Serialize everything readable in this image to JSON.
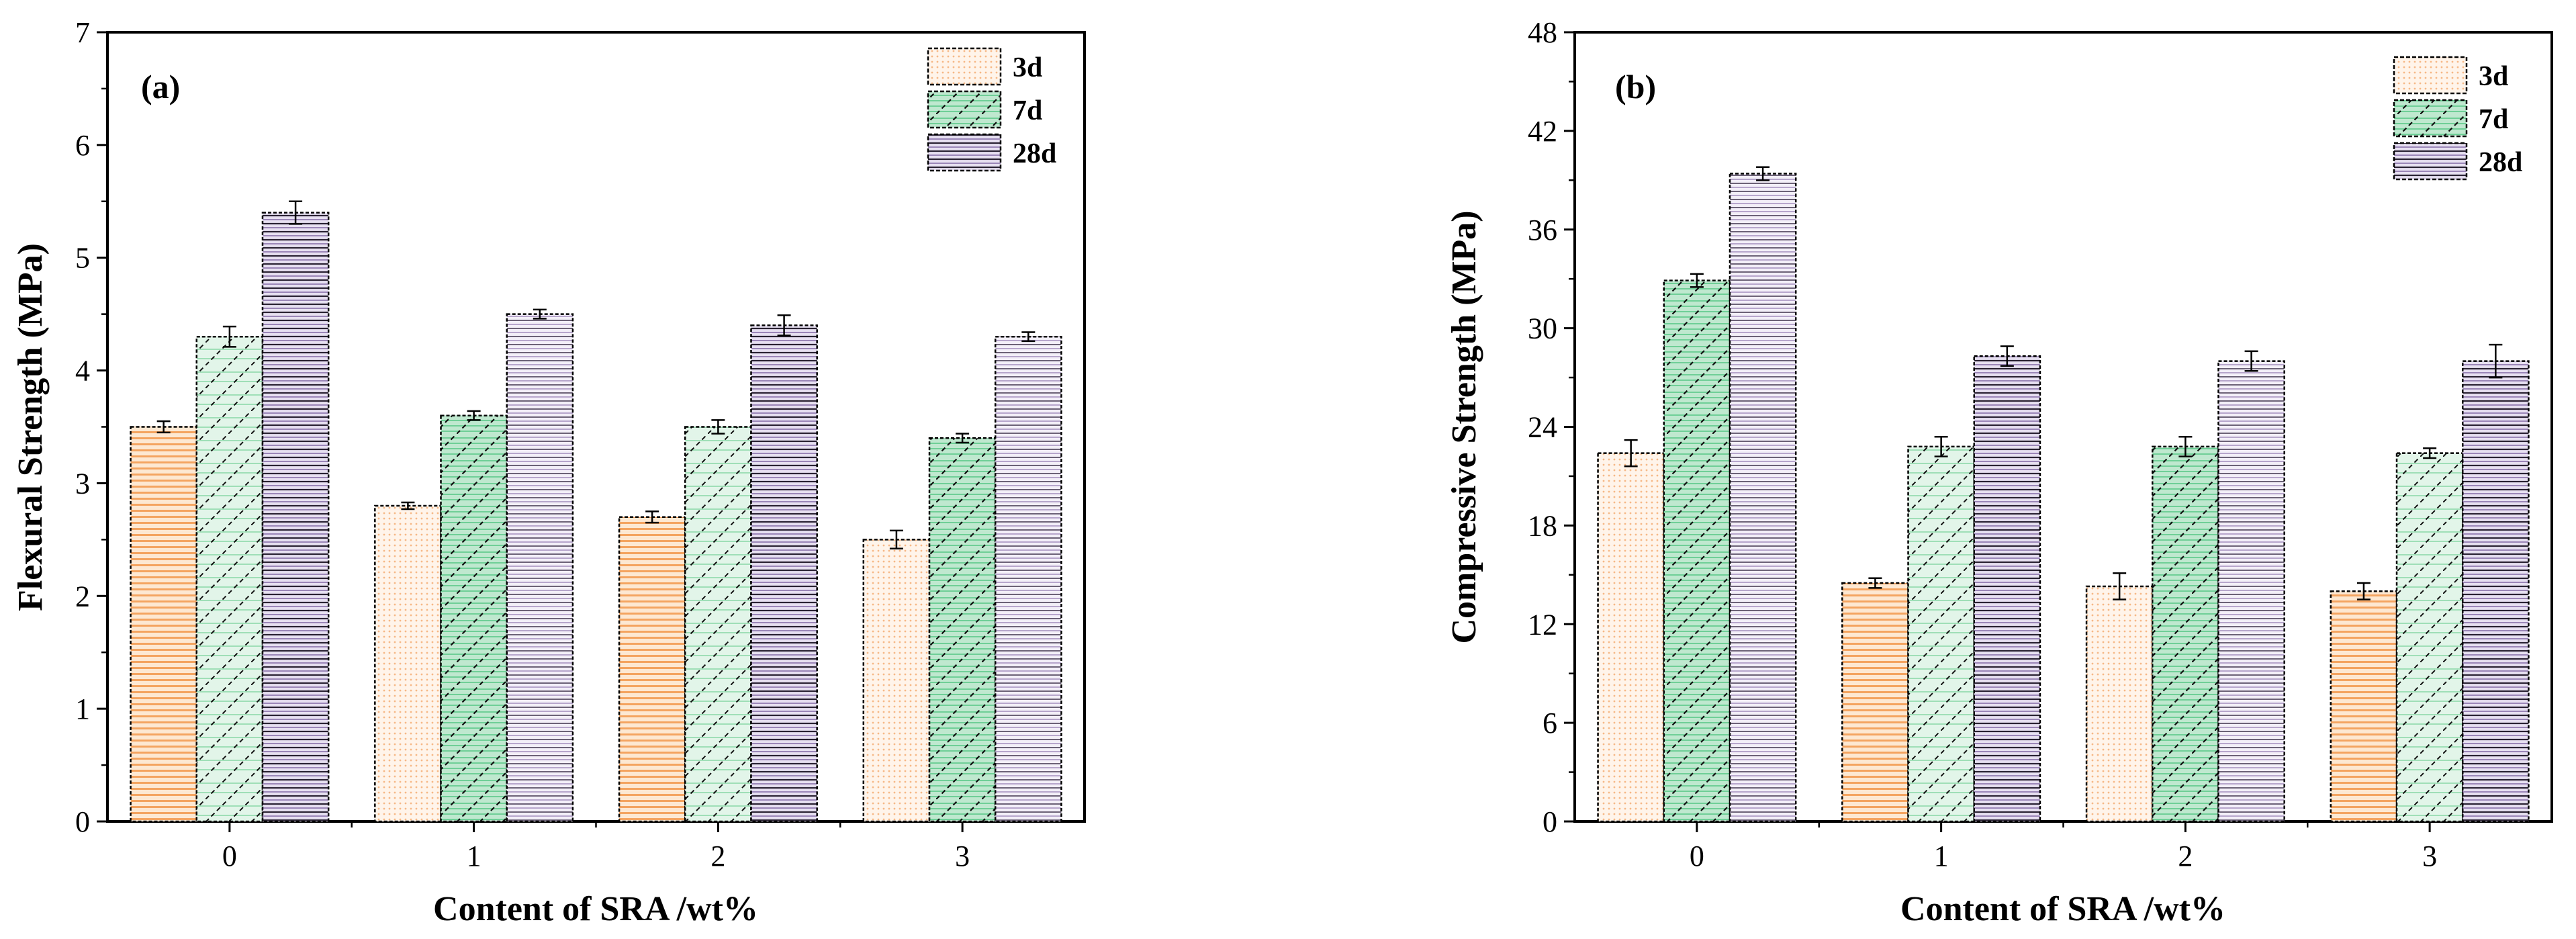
{
  "colors": {
    "3d": "#f4a460",
    "7d": "#3cb371",
    "28d": "#9b86b8",
    "axis": "#000000"
  },
  "chart_data": [
    {
      "panel": "(a)",
      "type": "bar",
      "categories": [
        "0",
        "1",
        "2",
        "3"
      ],
      "xlabel": "Content of SRA /wt%",
      "ylabel": "Flexural Strength (MPa)",
      "ylim": [
        0,
        7
      ],
      "yticks": [
        0,
        1,
        2,
        3,
        4,
        5,
        6,
        7
      ],
      "legend_position": "top-right",
      "series": [
        {
          "name": "3d",
          "values": [
            3.5,
            2.8,
            2.7,
            2.5
          ],
          "errors": [
            0.05,
            0.03,
            0.05,
            0.08
          ]
        },
        {
          "name": "7d",
          "values": [
            4.3,
            3.6,
            3.5,
            3.4
          ],
          "errors": [
            0.09,
            0.04,
            0.06,
            0.04
          ]
        },
        {
          "name": "28d",
          "values": [
            5.4,
            4.5,
            4.4,
            4.3
          ],
          "errors": [
            0.1,
            0.04,
            0.09,
            0.04
          ]
        }
      ]
    },
    {
      "panel": "(b)",
      "type": "bar",
      "categories": [
        "0",
        "1",
        "2",
        "3"
      ],
      "xlabel": "Content of SRA /wt%",
      "ylabel": "Compressive Strength (MPa)",
      "ylim": [
        0,
        48
      ],
      "yticks": [
        0,
        6,
        12,
        18,
        24,
        30,
        36,
        42,
        48
      ],
      "legend_position": "top-right",
      "series": [
        {
          "name": "3d",
          "values": [
            22.4,
            14.5,
            14.3,
            14.0
          ],
          "errors": [
            0.8,
            0.3,
            0.8,
            0.5
          ]
        },
        {
          "name": "7d",
          "values": [
            32.9,
            22.8,
            22.8,
            22.4
          ],
          "errors": [
            0.4,
            0.6,
            0.6,
            0.3
          ]
        },
        {
          "name": "28d",
          "values": [
            39.4,
            28.3,
            28.0,
            28.0
          ],
          "errors": [
            0.4,
            0.6,
            0.6,
            1.0
          ]
        }
      ]
    }
  ]
}
